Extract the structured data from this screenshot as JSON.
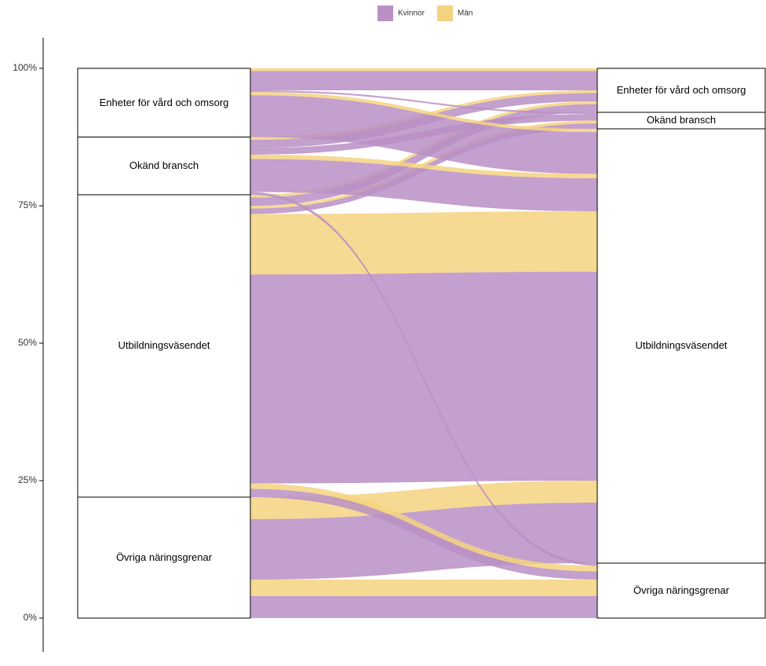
{
  "chart_data": {
    "type": "alluvial",
    "legend": {
      "position": "top"
    },
    "series": [
      {
        "name": "Kvinnor",
        "color": "#b98fc4"
      },
      {
        "name": "Män",
        "color": "#f5d27f"
      }
    ],
    "axes": [
      {
        "strata": [
          "Övriga näringsgrenar",
          "Utbildningsväsendet",
          "Okänd bransch",
          "Enheter för vård och omsorg"
        ]
      },
      {
        "strata": [
          "Övriga näringsgrenar",
          "Utbildningsväsendet",
          "Okänd bransch",
          "Enheter för vård och omsorg"
        ]
      }
    ],
    "flows": [
      {
        "from": "Övriga näringsgrenar",
        "to": "Övriga näringsgrenar",
        "group": "Män",
        "value": 3
      },
      {
        "from": "Övriga näringsgrenar",
        "to": "Övriga näringsgrenar",
        "group": "Kvinnor",
        "value": 4
      },
      {
        "from": "Övriga näringsgrenar",
        "to": "Utbildningsväsendet",
        "group": "Män",
        "value": 4
      },
      {
        "from": "Övriga näringsgrenar",
        "to": "Utbildningsväsendet",
        "group": "Kvinnor",
        "value": 11
      },
      {
        "from": "Utbildningsväsendet",
        "to": "Övriga näringsgrenar",
        "group": "Kvinnor",
        "value": 1.5
      },
      {
        "from": "Utbildningsväsendet",
        "to": "Övriga näringsgrenar",
        "group": "Män",
        "value": 1
      },
      {
        "from": "Utbildningsväsendet",
        "to": "Utbildningsväsendet",
        "group": "Män",
        "value": 11
      },
      {
        "from": "Utbildningsväsendet",
        "to": "Utbildningsväsendet",
        "group": "Kvinnor",
        "value": 38
      },
      {
        "from": "Utbildningsväsendet",
        "to": "Okänd bransch",
        "group": "Kvinnor",
        "value": 1
      },
      {
        "from": "Utbildningsväsendet",
        "to": "Okänd bransch",
        "group": "Män",
        "value": 0.5
      },
      {
        "from": "Utbildningsväsendet",
        "to": "Enheter för vård och omsorg",
        "group": "Kvinnor",
        "value": 1.5
      },
      {
        "from": "Utbildningsväsendet",
        "to": "Enheter för vård och omsorg",
        "group": "Män",
        "value": 0.5
      },
      {
        "from": "Okänd bransch",
        "to": "Övriga näringsgrenar",
        "group": "Kvinnor",
        "value": 0.5
      },
      {
        "from": "Okänd bransch",
        "to": "Utbildningsväsendet",
        "group": "Män",
        "value": 0.8
      },
      {
        "from": "Okänd bransch",
        "to": "Utbildningsväsendet",
        "group": "Kvinnor",
        "value": 6
      },
      {
        "from": "Okänd bransch",
        "to": "Okänd bransch",
        "group": "Kvinnor",
        "value": 1.2
      },
      {
        "from": "Okänd bransch",
        "to": "Enheter för vård och omsorg",
        "group": "Kvinnor",
        "value": 1.5
      },
      {
        "from": "Okänd bransch",
        "to": "Enheter för vård och omsorg",
        "group": "Män",
        "value": 0.5
      },
      {
        "from": "Enheter för vård och omsorg",
        "to": "Utbildningsväsendet",
        "group": "Män",
        "value": 0.6
      },
      {
        "from": "Enheter för vård och omsorg",
        "to": "Utbildningsväsendet",
        "group": "Kvinnor",
        "value": 7.6
      },
      {
        "from": "Enheter för vård och omsorg",
        "to": "Okänd bransch",
        "group": "Kvinnor",
        "value": 0.3
      },
      {
        "from": "Enheter för vård och omsorg",
        "to": "Enheter för vård och omsorg",
        "group": "Kvinnor",
        "value": 3.5
      },
      {
        "from": "Enheter för vård och omsorg",
        "to": "Enheter för vård och omsorg",
        "group": "Män",
        "value": 0.5
      }
    ],
    "ylim": [
      0,
      100
    ],
    "yticks": [
      {
        "value": 0,
        "label": "0%"
      },
      {
        "value": 25,
        "label": "25%"
      },
      {
        "value": 50,
        "label": "50%"
      },
      {
        "value": 75,
        "label": "75%"
      },
      {
        "value": 100,
        "label": "100%"
      }
    ]
  }
}
